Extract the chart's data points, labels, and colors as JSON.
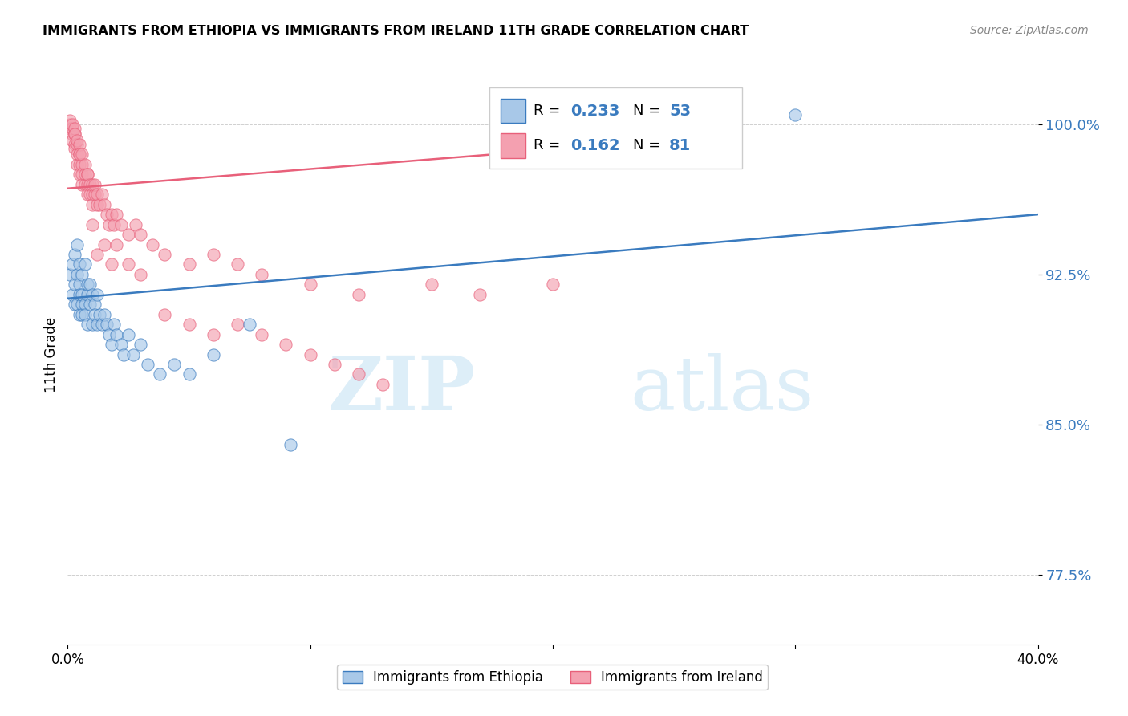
{
  "title": "IMMIGRANTS FROM ETHIOPIA VS IMMIGRANTS FROM IRELAND 11TH GRADE CORRELATION CHART",
  "source": "Source: ZipAtlas.com",
  "ylabel": "11th Grade",
  "yticks": [
    77.5,
    85.0,
    92.5,
    100.0
  ],
  "ytick_labels": [
    "77.5%",
    "85.0%",
    "92.5%",
    "100.0%"
  ],
  "xlim": [
    0.0,
    0.4
  ],
  "ylim": [
    74.0,
    103.0
  ],
  "color_ethiopia": "#a8c8e8",
  "color_ireland": "#f4a0b0",
  "trendline_ethiopia_color": "#3a7bbf",
  "trendline_ireland_color": "#e8607a",
  "watermark_zip": "ZIP",
  "watermark_atlas": "atlas",
  "watermark_color": "#ddeef8",
  "ethiopia_x": [
    0.001,
    0.002,
    0.002,
    0.003,
    0.003,
    0.003,
    0.004,
    0.004,
    0.004,
    0.005,
    0.005,
    0.005,
    0.005,
    0.006,
    0.006,
    0.006,
    0.006,
    0.007,
    0.007,
    0.007,
    0.008,
    0.008,
    0.008,
    0.009,
    0.009,
    0.01,
    0.01,
    0.011,
    0.011,
    0.012,
    0.012,
    0.013,
    0.014,
    0.015,
    0.016,
    0.017,
    0.018,
    0.019,
    0.02,
    0.022,
    0.023,
    0.025,
    0.027,
    0.03,
    0.033,
    0.038,
    0.044,
    0.05,
    0.06,
    0.075,
    0.092,
    0.27,
    0.3
  ],
  "ethiopia_y": [
    92.5,
    91.5,
    93.0,
    92.0,
    91.0,
    93.5,
    94.0,
    92.5,
    91.0,
    92.0,
    91.5,
    90.5,
    93.0,
    91.0,
    92.5,
    90.5,
    91.5,
    91.0,
    93.0,
    90.5,
    91.5,
    92.0,
    90.0,
    91.0,
    92.0,
    91.5,
    90.0,
    91.0,
    90.5,
    90.0,
    91.5,
    90.5,
    90.0,
    90.5,
    90.0,
    89.5,
    89.0,
    90.0,
    89.5,
    89.0,
    88.5,
    89.5,
    88.5,
    89.0,
    88.0,
    87.5,
    88.0,
    87.5,
    88.5,
    90.0,
    84.0,
    100.5,
    100.5
  ],
  "ireland_x": [
    0.001,
    0.001,
    0.001,
    0.002,
    0.002,
    0.002,
    0.002,
    0.003,
    0.003,
    0.003,
    0.003,
    0.003,
    0.004,
    0.004,
    0.004,
    0.004,
    0.005,
    0.005,
    0.005,
    0.005,
    0.005,
    0.006,
    0.006,
    0.006,
    0.006,
    0.007,
    0.007,
    0.007,
    0.008,
    0.008,
    0.008,
    0.008,
    0.009,
    0.009,
    0.01,
    0.01,
    0.01,
    0.011,
    0.011,
    0.012,
    0.012,
    0.013,
    0.014,
    0.015,
    0.016,
    0.017,
    0.018,
    0.019,
    0.02,
    0.022,
    0.025,
    0.028,
    0.03,
    0.035,
    0.04,
    0.05,
    0.06,
    0.07,
    0.08,
    0.1,
    0.12,
    0.15,
    0.17,
    0.2,
    0.01,
    0.012,
    0.015,
    0.018,
    0.02,
    0.025,
    0.03,
    0.04,
    0.05,
    0.06,
    0.07,
    0.08,
    0.09,
    0.1,
    0.11,
    0.12,
    0.13
  ],
  "ireland_y": [
    100.0,
    99.8,
    100.2,
    99.5,
    99.8,
    100.0,
    99.2,
    99.5,
    99.0,
    99.8,
    98.8,
    99.5,
    99.0,
    98.5,
    99.2,
    98.0,
    98.5,
    98.0,
    99.0,
    97.5,
    98.5,
    98.0,
    97.5,
    98.5,
    97.0,
    97.5,
    97.0,
    98.0,
    97.5,
    97.0,
    96.5,
    97.5,
    96.5,
    97.0,
    96.5,
    97.0,
    96.0,
    96.5,
    97.0,
    96.0,
    96.5,
    96.0,
    96.5,
    96.0,
    95.5,
    95.0,
    95.5,
    95.0,
    95.5,
    95.0,
    94.5,
    95.0,
    94.5,
    94.0,
    93.5,
    93.0,
    93.5,
    93.0,
    92.5,
    92.0,
    91.5,
    92.0,
    91.5,
    92.0,
    95.0,
    93.5,
    94.0,
    93.0,
    94.0,
    93.0,
    92.5,
    90.5,
    90.0,
    89.5,
    90.0,
    89.5,
    89.0,
    88.5,
    88.0,
    87.5,
    87.0
  ],
  "trendline_eth_x0": 0.0,
  "trendline_eth_y0": 91.3,
  "trendline_eth_x1": 0.4,
  "trendline_eth_y1": 95.5,
  "trendline_ire_x0": 0.0,
  "trendline_ire_y0": 96.8,
  "trendline_ire_x1": 0.175,
  "trendline_ire_y1": 98.5
}
